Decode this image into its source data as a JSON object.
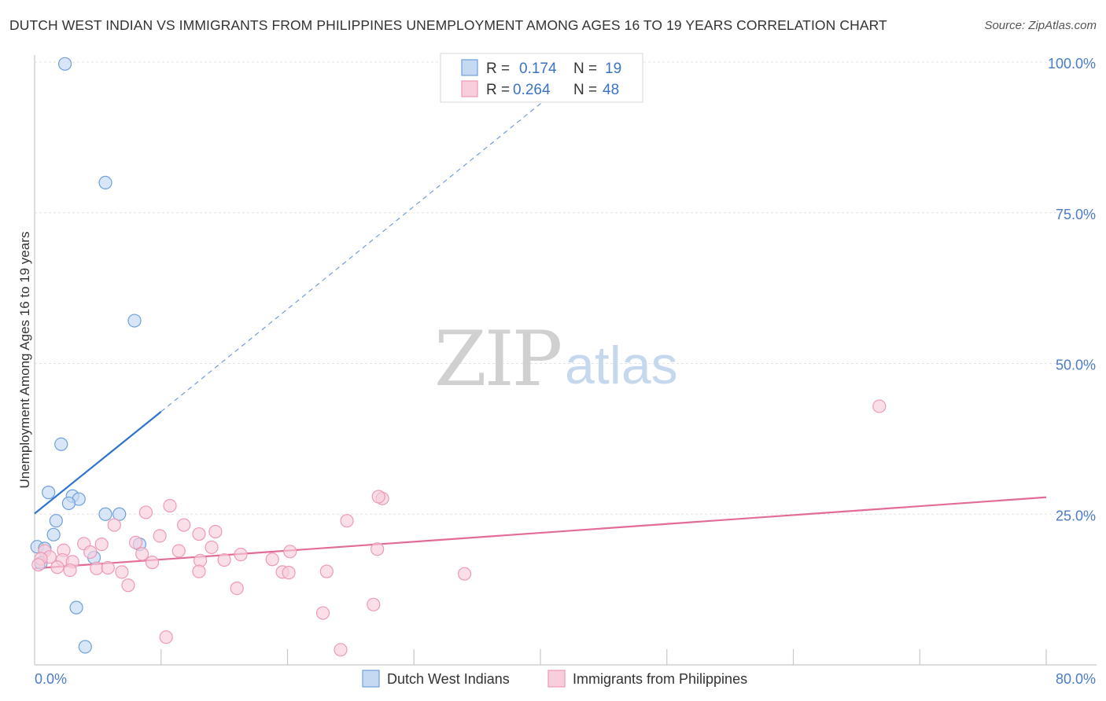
{
  "chart_data": {
    "type": "scatter",
    "title": "DUTCH WEST INDIAN VS IMMIGRANTS FROM PHILIPPINES UNEMPLOYMENT AMONG AGES 16 TO 19 YEARS CORRELATION CHART",
    "source": "Source: ZipAtlas.com",
    "xlabel": "",
    "ylabel": "Unemployment Among Ages 16 to 19 years",
    "xlim": [
      0,
      80
    ],
    "ylim": [
      0,
      100
    ],
    "x_tick_labels": [
      "0.0%",
      "80.0%"
    ],
    "y_ticks": [
      {
        "value": 25,
        "label": "25.0%"
      },
      {
        "value": 50,
        "label": "50.0%"
      },
      {
        "value": 75,
        "label": "75.0%"
      },
      {
        "value": 100,
        "label": "100.0%"
      }
    ],
    "watermark": {
      "zip": "ZIP",
      "atlas": "atlas"
    },
    "legend": [
      {
        "r_label": "R =",
        "r_value": "0.174",
        "n_label": "N =",
        "n_value": "19"
      },
      {
        "r_label": "R =",
        "r_value": "0.264",
        "n_label": "N =",
        "n_value": "48"
      }
    ],
    "series": [
      {
        "name": "Dutch West Indians",
        "color": "#6fa0dc",
        "fill": "#c5d9f2",
        "trend_color": "#2f74cc",
        "trend": {
          "x0": 0,
          "y0": 25.1,
          "x1": 10,
          "y1": 42.0,
          "dash_to_x": 42,
          "dash_to_y": 96.5
        },
        "points": [
          [
            2.4,
            99.7
          ],
          [
            5.6,
            80.0
          ],
          [
            7.9,
            57.1
          ],
          [
            2.1,
            36.6
          ],
          [
            1.1,
            28.6
          ],
          [
            3.0,
            28.0
          ],
          [
            3.5,
            27.5
          ],
          [
            2.7,
            26.8
          ],
          [
            5.6,
            25.0
          ],
          [
            6.7,
            25.0
          ],
          [
            1.7,
            23.9
          ],
          [
            1.5,
            21.6
          ],
          [
            8.3,
            20.0
          ],
          [
            0.2,
            19.6
          ],
          [
            0.8,
            19.3
          ],
          [
            4.7,
            17.8
          ],
          [
            0.5,
            16.9
          ],
          [
            3.3,
            9.5
          ],
          [
            4.0,
            3.0
          ]
        ]
      },
      {
        "name": "Immigrants from Philippines",
        "color": "#ee9ab5",
        "fill": "#f8cedd",
        "trend_color": "#e26b98",
        "trend": {
          "x0": 0,
          "y0": 16.0,
          "x1": 80,
          "y1": 27.8
        },
        "points": [
          [
            66.8,
            42.9
          ],
          [
            27.5,
            27.6
          ],
          [
            27.2,
            27.9
          ],
          [
            10.7,
            26.4
          ],
          [
            8.8,
            25.3
          ],
          [
            24.7,
            23.9
          ],
          [
            11.8,
            23.2
          ],
          [
            6.3,
            23.2
          ],
          [
            14.3,
            22.1
          ],
          [
            13.0,
            21.7
          ],
          [
            9.9,
            21.4
          ],
          [
            8.0,
            20.3
          ],
          [
            3.9,
            20.1
          ],
          [
            5.3,
            20.0
          ],
          [
            14.0,
            19.5
          ],
          [
            2.3,
            19.0
          ],
          [
            0.8,
            18.9
          ],
          [
            27.1,
            19.2
          ],
          [
            11.4,
            18.9
          ],
          [
            20.2,
            18.8
          ],
          [
            4.4,
            18.7
          ],
          [
            8.5,
            18.4
          ],
          [
            1.2,
            17.9
          ],
          [
            16.3,
            18.3
          ],
          [
            0.5,
            17.6
          ],
          [
            2.2,
            17.4
          ],
          [
            13.1,
            17.3
          ],
          [
            15.0,
            17.4
          ],
          [
            18.8,
            17.5
          ],
          [
            9.3,
            17.0
          ],
          [
            3.0,
            17.1
          ],
          [
            0.3,
            16.6
          ],
          [
            1.8,
            16.2
          ],
          [
            4.9,
            16.0
          ],
          [
            5.8,
            16.1
          ],
          [
            2.8,
            15.7
          ],
          [
            13.0,
            15.5
          ],
          [
            6.9,
            15.4
          ],
          [
            19.6,
            15.4
          ],
          [
            20.1,
            15.3
          ],
          [
            23.1,
            15.5
          ],
          [
            34.0,
            15.1
          ],
          [
            7.4,
            13.2
          ],
          [
            16.0,
            12.7
          ],
          [
            26.8,
            10.0
          ],
          [
            22.8,
            8.6
          ],
          [
            10.4,
            4.6
          ],
          [
            24.2,
            2.5
          ]
        ]
      }
    ]
  }
}
